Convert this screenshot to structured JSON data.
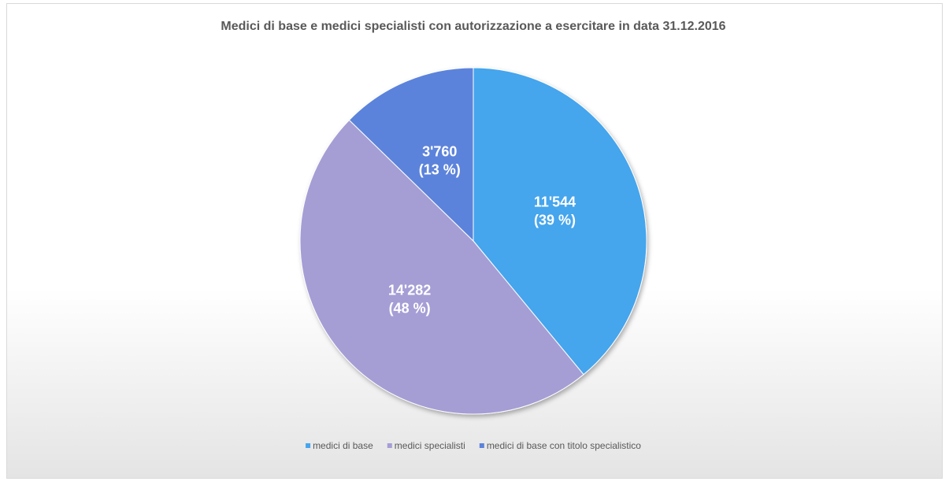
{
  "chart_data": {
    "type": "pie",
    "title": "Medici di base e medici specialisti con autorizzazione a esercitare in data 31.12.2016",
    "categories": [
      "medici di base",
      "medici specialisti",
      "medici di base con titolo specialistico"
    ],
    "values": [
      11544,
      14282,
      3760
    ],
    "value_labels": [
      "11'544",
      "14'282",
      "3'760"
    ],
    "percentages": [
      39,
      48,
      13
    ],
    "percentage_labels": [
      "(39 %)",
      "(48 %)",
      "(13 %)"
    ],
    "colors": [
      "#45a5ed",
      "#a59ed5",
      "#5b83db"
    ],
    "legend": "bottom"
  }
}
